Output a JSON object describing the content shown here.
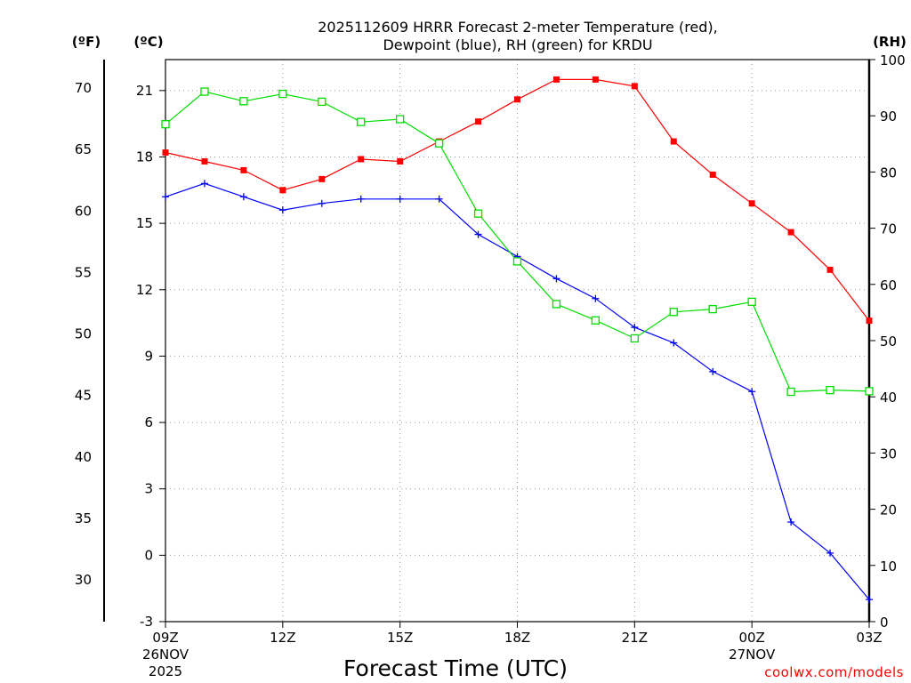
{
  "chart_data": {
    "type": "line",
    "title_lines": [
      "2025112609 HRRR Forecast 2-meter Temperature (red),",
      "Dewpoint (blue), RH (green) for KRDU"
    ],
    "xlabel": "Forecast Time (UTC)",
    "credit": "coolwx.com/models",
    "units": {
      "fahrenheit": "(ºF)",
      "celsius": "(ºC)",
      "rh": "(RH)"
    },
    "x_ticks": [
      {
        "hour": 0,
        "label": "09Z",
        "sub1": "26NOV",
        "sub2": "2025"
      },
      {
        "hour": 3,
        "label": "12Z",
        "sub1": "",
        "sub2": ""
      },
      {
        "hour": 6,
        "label": "15Z",
        "sub1": "",
        "sub2": ""
      },
      {
        "hour": 9,
        "label": "18Z",
        "sub1": "",
        "sub2": ""
      },
      {
        "hour": 12,
        "label": "21Z",
        "sub1": "",
        "sub2": ""
      },
      {
        "hour": 15,
        "label": "00Z",
        "sub1": "27NOV",
        "sub2": ""
      },
      {
        "hour": 18,
        "label": "03Z",
        "sub1": "",
        "sub2": ""
      }
    ],
    "xlim": [
      0,
      18
    ],
    "celsius_axis": {
      "ylim": [
        -3,
        22.4
      ],
      "ticks": [
        -3,
        0,
        3,
        6,
        9,
        12,
        15,
        18,
        21
      ]
    },
    "fahrenheit_axis": {
      "ticks": [
        30,
        35,
        40,
        45,
        50,
        55,
        60,
        65,
        70
      ]
    },
    "rh_axis": {
      "ylim": [
        0,
        100
      ],
      "ticks": [
        0,
        10,
        20,
        30,
        40,
        50,
        60,
        70,
        80,
        90,
        100
      ]
    },
    "series": [
      {
        "name": "Temperature",
        "units": "C",
        "color": "#ff0000",
        "marker": "filled-square",
        "x": [
          0,
          1,
          2,
          3,
          4,
          5,
          6,
          7,
          8,
          9,
          10,
          11,
          12,
          13,
          14,
          15,
          16,
          17,
          18
        ],
        "values": [
          18.2,
          17.8,
          17.4,
          16.5,
          17.0,
          17.9,
          17.8,
          18.7,
          19.6,
          20.6,
          21.5,
          21.5,
          21.2,
          18.7,
          17.2,
          15.9,
          14.6,
          12.9,
          10.6
        ]
      },
      {
        "name": "Dewpoint",
        "units": "C",
        "color": "#0000ff",
        "marker": "plus",
        "x": [
          0,
          1,
          2,
          3,
          4,
          5,
          6,
          7,
          8,
          9,
          10,
          11,
          12,
          13,
          14,
          15,
          16,
          17,
          18
        ],
        "values": [
          16.2,
          16.8,
          16.2,
          15.6,
          15.9,
          16.1,
          16.1,
          16.1,
          14.5,
          13.5,
          12.5,
          11.6,
          10.3,
          9.6,
          8.3,
          7.4,
          1.5,
          0.1,
          -2.0
        ]
      },
      {
        "name": "RH",
        "units": "%",
        "color": "#00dd00",
        "marker": "open-square",
        "x": [
          0,
          1,
          2,
          3,
          4,
          5,
          6,
          7,
          8,
          9,
          10,
          11,
          12,
          13,
          14,
          15,
          16,
          17,
          18
        ],
        "values": [
          88.5,
          94.3,
          92.6,
          93.9,
          92.5,
          88.9,
          89.4,
          85.1,
          72.6,
          64.1,
          56.5,
          53.6,
          50.4,
          55.1,
          55.6,
          56.9,
          40.9,
          41.2,
          41.0
        ]
      }
    ]
  }
}
